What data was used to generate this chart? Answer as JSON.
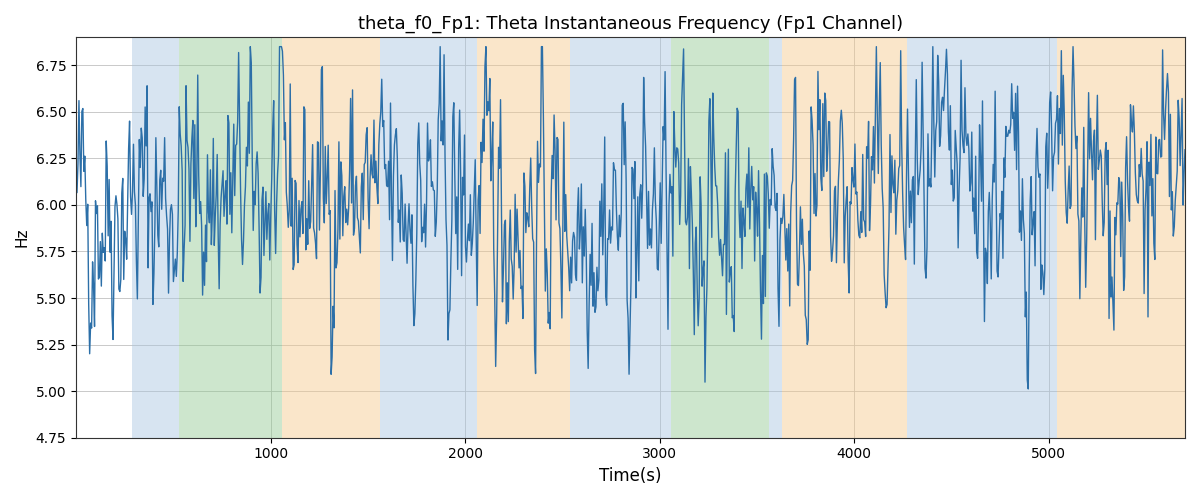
{
  "title": "theta_f0_Fp1: Theta Instantaneous Frequency (Fp1 Channel)",
  "xlabel": "Time(s)",
  "ylabel": "Hz",
  "xlim": [
    0,
    5700
  ],
  "ylim": [
    4.75,
    6.9
  ],
  "line_color": "#2c6fa8",
  "line_width": 1.0,
  "background_color": "#ffffff",
  "seed": 42,
  "n_points": 1140,
  "base_freq": 6.0,
  "bands": [
    {
      "xmin": 290,
      "xmax": 530,
      "color": "#a8c4e0",
      "alpha": 0.45
    },
    {
      "xmin": 530,
      "xmax": 1060,
      "color": "#90c990",
      "alpha": 0.45
    },
    {
      "xmin": 1060,
      "xmax": 1560,
      "color": "#f5c98a",
      "alpha": 0.45
    },
    {
      "xmin": 1560,
      "xmax": 2060,
      "color": "#a8c4e0",
      "alpha": 0.45
    },
    {
      "xmin": 2060,
      "xmax": 2540,
      "color": "#f5c98a",
      "alpha": 0.45
    },
    {
      "xmin": 2540,
      "xmax": 2600,
      "color": "#a8c4e0",
      "alpha": 0.45
    },
    {
      "xmin": 2600,
      "xmax": 3060,
      "color": "#a8c4e0",
      "alpha": 0.45
    },
    {
      "xmin": 3060,
      "xmax": 3560,
      "color": "#90c990",
      "alpha": 0.45
    },
    {
      "xmin": 3560,
      "xmax": 3630,
      "color": "#a8c4e0",
      "alpha": 0.45
    },
    {
      "xmin": 3630,
      "xmax": 4270,
      "color": "#f5c98a",
      "alpha": 0.45
    },
    {
      "xmin": 4270,
      "xmax": 5040,
      "color": "#a8c4e0",
      "alpha": 0.45
    },
    {
      "xmin": 5040,
      "xmax": 5700,
      "color": "#f5c98a",
      "alpha": 0.45
    }
  ],
  "yticks": [
    4.75,
    5.0,
    5.25,
    5.5,
    5.75,
    6.0,
    6.25,
    6.5,
    6.75
  ],
  "xticks": [
    1000,
    2000,
    3000,
    4000,
    5000
  ]
}
